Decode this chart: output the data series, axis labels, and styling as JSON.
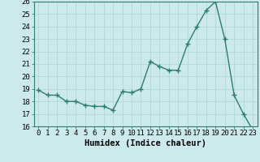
{
  "x": [
    0,
    1,
    2,
    3,
    4,
    5,
    6,
    7,
    8,
    9,
    10,
    11,
    12,
    13,
    14,
    15,
    16,
    17,
    18,
    19,
    20,
    21,
    22,
    23
  ],
  "y": [
    18.9,
    18.5,
    18.5,
    18.0,
    18.0,
    17.7,
    17.6,
    17.6,
    17.3,
    18.8,
    18.7,
    19.0,
    21.2,
    20.8,
    20.5,
    20.5,
    22.6,
    24.0,
    25.3,
    26.0,
    23.0,
    18.5,
    17.0,
    15.7
  ],
  "line_color": "#2e7d6e",
  "marker": "+",
  "marker_size": 4,
  "bg_color": "#cce9ec",
  "grid_color": "#b0d8dc",
  "xlabel": "Humidex (Indice chaleur)",
  "ylim": [
    16,
    26
  ],
  "xlim": [
    -0.5,
    23.5
  ],
  "yticks": [
    16,
    17,
    18,
    19,
    20,
    21,
    22,
    23,
    24,
    25,
    26
  ],
  "xticks": [
    0,
    1,
    2,
    3,
    4,
    5,
    6,
    7,
    8,
    9,
    10,
    11,
    12,
    13,
    14,
    15,
    16,
    17,
    18,
    19,
    20,
    21,
    22,
    23
  ],
  "tick_label_fontsize": 6.5,
  "xlabel_fontsize": 7.5
}
